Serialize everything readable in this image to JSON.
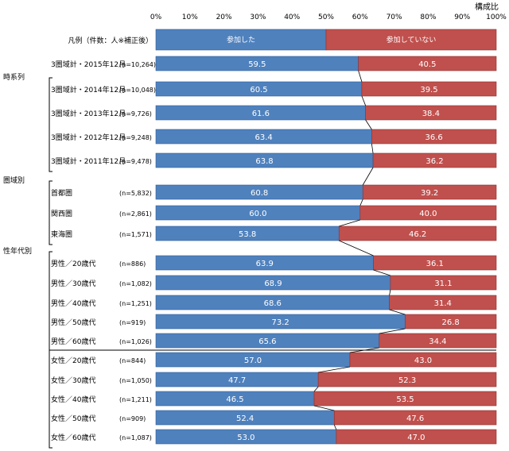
{
  "chart_data": {
    "type": "bar",
    "stacked": true,
    "orientation": "horizontal",
    "title": "構成比",
    "xlim": [
      0,
      100
    ],
    "x_ticks": [
      "0%",
      "10%",
      "20%",
      "30%",
      "40%",
      "50%",
      "60%",
      "70%",
      "80%",
      "90%",
      "100%"
    ],
    "legend_row": {
      "label": "凡例（件数：人※補正後）",
      "series_labels": [
        "参加した",
        "参加していない"
      ]
    },
    "series": [
      {
        "name": "参加した",
        "color": "#4f81bd"
      },
      {
        "name": "参加していない",
        "color": "#c0504d"
      }
    ],
    "groups": [
      {
        "label": "",
        "rows": [
          0
        ]
      },
      {
        "label": "時系列",
        "rows": [
          1,
          2,
          3,
          4
        ]
      },
      {
        "label": "圏域別",
        "rows": [
          5,
          6,
          7
        ]
      },
      {
        "label": "性年代別",
        "rows": [
          8,
          9,
          10,
          11,
          12,
          13,
          14,
          15,
          16,
          17
        ]
      }
    ],
    "rows": [
      {
        "label": "3圏域計・2015年12月",
        "n": "(n=10,264)",
        "values": [
          59.5,
          40.5
        ],
        "labels": [
          "59.5",
          "40.5"
        ]
      },
      {
        "label": "3圏域計・2014年12月",
        "n": "(n=10,048)",
        "values": [
          60.5,
          39.5
        ],
        "labels": [
          "60.5",
          "39.5"
        ]
      },
      {
        "label": "3圏域計・2013年12月",
        "n": "(n=9,726)",
        "values": [
          61.6,
          38.4
        ],
        "labels": [
          "61.6",
          "38.4"
        ]
      },
      {
        "label": "3圏域計・2012年12月",
        "n": "(n=9,248)",
        "values": [
          63.4,
          36.6
        ],
        "labels": [
          "63.4",
          "36.6"
        ]
      },
      {
        "label": "3圏域計・2011年12月",
        "n": "(n=9,478)",
        "values": [
          63.8,
          36.2
        ],
        "labels": [
          "63.8",
          "36.2"
        ]
      },
      {
        "label": "首都圏",
        "n": "(n=5,832)",
        "values": [
          60.8,
          39.2
        ],
        "labels": [
          "60.8",
          "39.2"
        ]
      },
      {
        "label": "関西圏",
        "n": "(n=2,861)",
        "values": [
          60.0,
          40.0
        ],
        "labels": [
          "60.0",
          "40.0"
        ]
      },
      {
        "label": "東海圏",
        "n": "(n=1,571)",
        "values": [
          53.8,
          46.2
        ],
        "labels": [
          "53.8",
          "46.2"
        ]
      },
      {
        "label": "男性／20歳代",
        "n": "(n=886)",
        "values": [
          63.9,
          36.1
        ],
        "labels": [
          "63.9",
          "36.1"
        ]
      },
      {
        "label": "男性／30歳代",
        "n": "(n=1,082)",
        "values": [
          68.9,
          31.1
        ],
        "labels": [
          "68.9",
          "31.1"
        ]
      },
      {
        "label": "男性／40歳代",
        "n": "(n=1,251)",
        "values": [
          68.6,
          31.4
        ],
        "labels": [
          "68.6",
          "31.4"
        ]
      },
      {
        "label": "男性／50歳代",
        "n": "(n=919)",
        "values": [
          73.2,
          26.8
        ],
        "labels": [
          "73.2",
          "26.8"
        ]
      },
      {
        "label": "男性／60歳代",
        "n": "(n=1,026)",
        "values": [
          65.6,
          34.4
        ],
        "labels": [
          "65.6",
          "34.4"
        ]
      },
      {
        "label": "女性／20歳代",
        "n": "(n=844)",
        "values": [
          57.0,
          43.0
        ],
        "labels": [
          "57.0",
          "43.0"
        ]
      },
      {
        "label": "女性／30歳代",
        "n": "(n=1,050)",
        "values": [
          47.7,
          52.3
        ],
        "labels": [
          "47.7",
          "52.3"
        ]
      },
      {
        "label": "女性／40歳代",
        "n": "(n=1,211)",
        "values": [
          46.5,
          53.5
        ],
        "labels": [
          "46.5",
          "53.5"
        ]
      },
      {
        "label": "女性／50歳代",
        "n": "(n=909)",
        "values": [
          52.4,
          47.6
        ],
        "labels": [
          "52.4",
          "47.6"
        ]
      },
      {
        "label": "女性／60歳代",
        "n": "(n=1,087)",
        "values": [
          53.0,
          47.0
        ],
        "labels": [
          "53.0",
          "47.0"
        ]
      }
    ],
    "connector_lines": true
  }
}
